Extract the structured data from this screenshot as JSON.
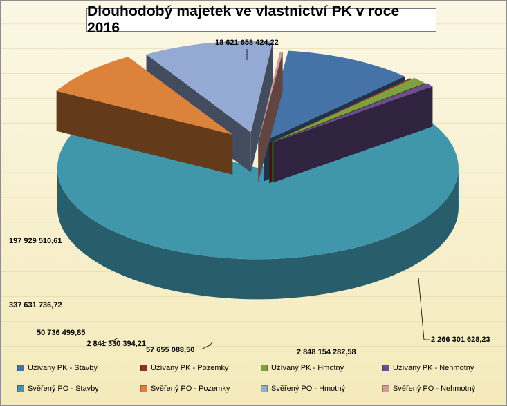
{
  "chart_data": {
    "type": "pie",
    "title": "Dlouhodobý majetek ve vlastnictví PK v roce 2016",
    "legend_position": "bottom",
    "slices": [
      {
        "name": "Užívaný PK - Stavby",
        "value": 2841330394.21,
        "label": "2 841 330 394,21",
        "color": "#4572a7"
      },
      {
        "name": "Užívaný PK - Pozemky",
        "value": 50736499.85,
        "label": "50 736 499,85",
        "color": "#8f302d"
      },
      {
        "name": "Užívaný PK - Hmotný",
        "value": 337631736.72,
        "label": "337 631 736,72",
        "color": "#7fa03e"
      },
      {
        "name": "Užívaný PK - Nehmotný",
        "value": 197929510.61,
        "label": "197 929 510,61",
        "color": "#6a4e8e"
      },
      {
        "name": "Svěřený PO - Stavby",
        "value": 18621658424.22,
        "label": "18 621 658 424,22",
        "color": "#4097ac"
      },
      {
        "name": "Svěřený PO - Pozemky",
        "value": 2266301628.23,
        "label": "2 266 301 628,23",
        "color": "#dc823a"
      },
      {
        "name": "Svěřený PO - Hmotný",
        "value": 2848154282.58,
        "label": "2 848 154 282,58",
        "color": "#94a9d4"
      },
      {
        "name": "Svěřený PO - Nehmotný",
        "value": 57655088.5,
        "label": "57 655 088,50",
        "color": "#d59a95"
      }
    ]
  }
}
